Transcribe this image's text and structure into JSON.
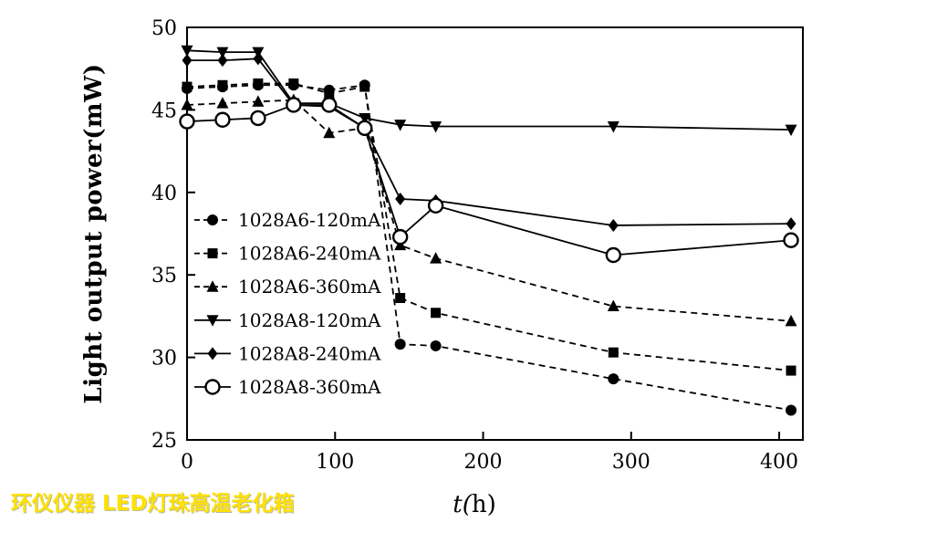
{
  "watermark": {
    "text": "环仪仪器 LED灯珠高温老化箱",
    "color": "#FFE100"
  },
  "chart_data": {
    "type": "line",
    "title": "",
    "xlabel": "t(h)",
    "ylabel": "Light output power(mW)",
    "xlim": [
      0,
      416
    ],
    "ylim": [
      25,
      50
    ],
    "x_ticks": [
      0,
      100,
      200,
      300,
      400
    ],
    "y_ticks": [
      25,
      30,
      35,
      40,
      45,
      50
    ],
    "grid": false,
    "legend_position": "middle-left",
    "x": [
      0,
      24,
      48,
      72,
      96,
      120,
      144,
      168,
      288,
      408
    ],
    "series": [
      {
        "name": "1028A6-120mA",
        "marker": "circle",
        "line": "dashed",
        "values": [
          46.3,
          46.4,
          46.5,
          46.5,
          46.2,
          46.5,
          30.8,
          30.7,
          28.7,
          26.8
        ]
      },
      {
        "name": "1028A6-240mA",
        "marker": "square",
        "line": "dashed",
        "values": [
          46.4,
          46.5,
          46.6,
          46.6,
          46.0,
          46.4,
          33.6,
          32.7,
          30.3,
          29.2
        ]
      },
      {
        "name": "1028A6-360mA",
        "marker": "triangle-up",
        "line": "dashed",
        "values": [
          45.3,
          45.4,
          45.5,
          45.6,
          43.6,
          43.9,
          36.8,
          36.0,
          33.1,
          32.2
        ]
      },
      {
        "name": "1028A8-120mA",
        "marker": "triangle-down",
        "line": "solid",
        "values": [
          48.6,
          48.5,
          48.5,
          45.4,
          45.4,
          44.5,
          44.1,
          44.0,
          44.0,
          43.8
        ]
      },
      {
        "name": "1028A8-240mA",
        "marker": "diamond",
        "line": "solid",
        "values": [
          48.0,
          48.0,
          48.1,
          45.3,
          45.2,
          43.9,
          39.6,
          39.5,
          38.0,
          38.1
        ]
      },
      {
        "name": "1028A8-360mA",
        "marker": "open-circle",
        "line": "solid",
        "values": [
          44.3,
          44.4,
          44.5,
          45.3,
          45.3,
          43.9,
          37.3,
          39.2,
          36.2,
          37.1
        ]
      }
    ]
  }
}
